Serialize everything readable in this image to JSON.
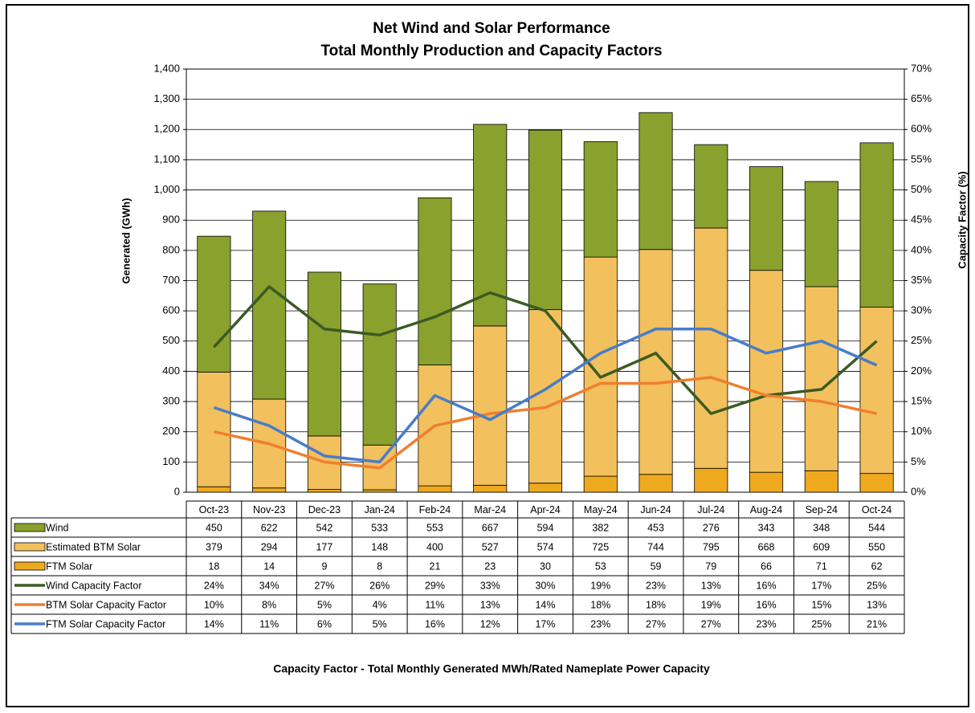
{
  "chart_data": {
    "type": "bar",
    "stacked": true,
    "title": "Net Wind and Solar Performance",
    "subtitle": "Total Monthly Production and Capacity Factors",
    "y_label": "Generated (GWh)",
    "y2_label": "Capacity  Factor (%)",
    "note": "Capacity Factor  - Total Monthly Generated MWh/Rated Nameplate Power Capacity",
    "categories": [
      "Oct-23",
      "Nov-23",
      "Dec-23",
      "Jan-24",
      "Feb-24",
      "Mar-24",
      "Apr-24",
      "May-24",
      "Jun-24",
      "Jul-24",
      "Aug-24",
      "Sep-24",
      "Oct-24"
    ],
    "ylim": [
      0,
      1400
    ],
    "yticks": [
      0,
      100,
      200,
      300,
      400,
      500,
      600,
      700,
      800,
      900,
      {
        "value": 1000,
        "label": "1,000"
      },
      {
        "value": 1100,
        "label": "1,100"
      },
      {
        "value": 1200,
        "label": "1,200"
      },
      {
        "value": 1300,
        "label": "1,300"
      },
      {
        "value": 1400,
        "label": "1,400"
      }
    ],
    "y2lim": [
      0,
      70
    ],
    "y2ticks": [
      {
        "value": 0,
        "label": "0%"
      },
      {
        "value": 5,
        "label": "5%"
      },
      {
        "value": 10,
        "label": "10%"
      },
      {
        "value": 15,
        "label": "15%"
      },
      {
        "value": 20,
        "label": "20%"
      },
      {
        "value": 25,
        "label": "25%"
      },
      {
        "value": 30,
        "label": "30%"
      },
      {
        "value": 35,
        "label": "35%"
      },
      {
        "value": 40,
        "label": "40%"
      },
      {
        "value": 45,
        "label": "45%"
      },
      {
        "value": 50,
        "label": "50%"
      },
      {
        "value": 55,
        "label": "55%"
      },
      {
        "value": 60,
        "label": "60%"
      },
      {
        "value": 65,
        "label": "65%"
      },
      {
        "value": 70,
        "label": "70%"
      }
    ],
    "grid": true,
    "series": [
      {
        "name": "Wind",
        "type": "bar",
        "color": "#8aa12e",
        "values": [
          450,
          622,
          542,
          533,
          553,
          667,
          594,
          382,
          453,
          276,
          343,
          348,
          544
        ]
      },
      {
        "name": "Estimated BTM Solar",
        "type": "bar",
        "color": "#f2c05c",
        "values": [
          379,
          294,
          177,
          148,
          400,
          527,
          574,
          725,
          744,
          795,
          668,
          609,
          550
        ]
      },
      {
        "name": "FTM Solar",
        "type": "bar",
        "color": "#eea91e",
        "values": [
          18,
          14,
          9,
          8,
          21,
          23,
          30,
          53,
          59,
          79,
          66,
          71,
          62
        ]
      },
      {
        "name": "Wind Capacity Factor",
        "type": "line",
        "axis": "y2",
        "color": "#3b5b23",
        "values": [
          24,
          34,
          27,
          26,
          29,
          33,
          30,
          19,
          23,
          13,
          16,
          17,
          25
        ],
        "value_labels": [
          "24%",
          "34%",
          "27%",
          "26%",
          "29%",
          "33%",
          "30%",
          "19%",
          "23%",
          "13%",
          "16%",
          "17%",
          "25%"
        ]
      },
      {
        "name": "BTM Solar Capacity Factor",
        "type": "line",
        "axis": "y2",
        "color": "#f07f30",
        "values": [
          10,
          8,
          5,
          4,
          11,
          13,
          14,
          18,
          18,
          19,
          16,
          15,
          13
        ],
        "value_labels": [
          "10%",
          "8%",
          "5%",
          "4%",
          "11%",
          "13%",
          "14%",
          "18%",
          "18%",
          "19%",
          "16%",
          "15%",
          "13%"
        ]
      },
      {
        "name": "FTM Solar Capacity Factor",
        "type": "line",
        "axis": "y2",
        "color": "#4a7cc8",
        "values": [
          14,
          11,
          6,
          5,
          16,
          12,
          17,
          23,
          27,
          27,
          23,
          25,
          21
        ],
        "value_labels": [
          "14%",
          "11%",
          "6%",
          "5%",
          "16%",
          "12%",
          "17%",
          "23%",
          "27%",
          "27%",
          "23%",
          "25%",
          "21%"
        ]
      }
    ]
  }
}
